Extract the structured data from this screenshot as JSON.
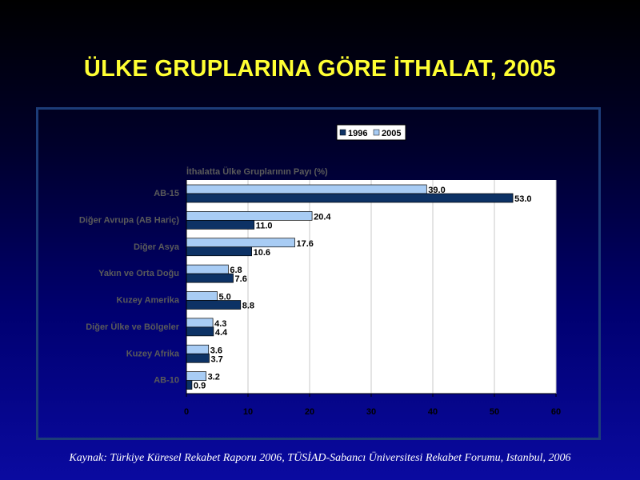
{
  "title": "ÜLKE GRUPLARINA GÖRE İTHALAT, 2005",
  "source": "Kaynak: Türkiye Küresel Rekabet Raporu 2006, TÜSİAD-Sabancı Üniversitesi Rekabet Forumu, Istanbul, 2006",
  "colors": {
    "series_1996": "#0d3265",
    "series_2005": "#a8ccf4",
    "title": "#ffff33",
    "axis_text": "#000000",
    "chart_label": "#5a5a5a"
  },
  "chart_data": {
    "type": "bar",
    "orientation": "horizontal",
    "subtitle": "İthalatta Ülke Gruplarının Payı (%)",
    "categories": [
      "AB-15",
      "Diğer Avrupa (AB Hariç)",
      "Diğer Asya",
      "Yakın ve Orta Doğu",
      "Kuzey Amerika",
      "Diğer Ülke ve Bölgeler",
      "Kuzey Afrika",
      "AB-10"
    ],
    "series": [
      {
        "name": "2005",
        "values": [
          39.0,
          20.4,
          17.6,
          6.8,
          5.0,
          4.3,
          3.6,
          3.2
        ]
      },
      {
        "name": "1996",
        "values": [
          53.0,
          11.0,
          10.6,
          7.6,
          8.8,
          4.4,
          3.7,
          0.9
        ]
      }
    ],
    "legend": [
      "1996",
      "2005"
    ],
    "legend_placement": "top-center",
    "xlim": [
      0,
      60
    ],
    "xticks": [
      0,
      10,
      20,
      30,
      40,
      50,
      60
    ],
    "grid": true
  }
}
